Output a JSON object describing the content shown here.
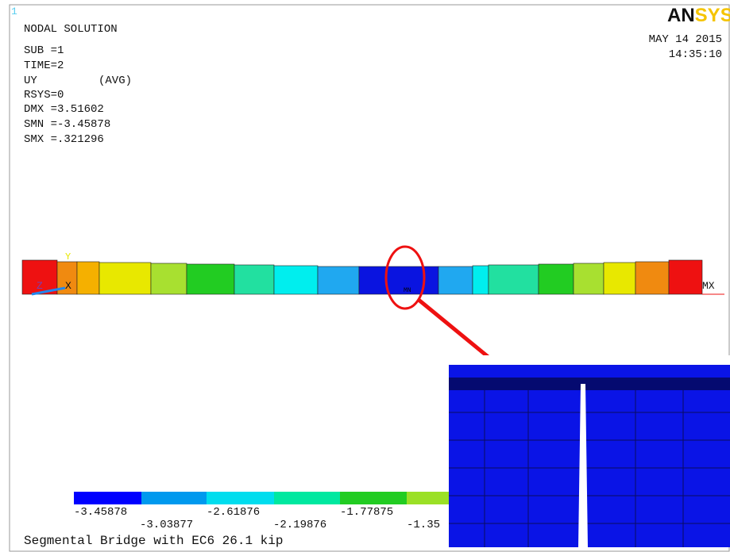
{
  "window_number": "1",
  "logo": {
    "an": "AN",
    "sys": "SYS"
  },
  "info": {
    "title": "NODAL SOLUTION",
    "sub": "SUB =1",
    "time": "TIME=2",
    "item": "UY",
    "avg": "(AVG)",
    "rsys": "RSYS=0",
    "dmx": "DMX =3.51602",
    "smn": "SMN =-3.45878",
    "smx": "SMX =.321296"
  },
  "date": "MAY 14 2015",
  "clock": "14:35:10",
  "triad": {
    "y": "Y",
    "z": "Z",
    "x": "X"
  },
  "markers": {
    "mx": "MX",
    "mn": "MN"
  },
  "legend": [
    "-3.45878",
    "-3.03877",
    "-2.61876",
    "-2.19876",
    "-1.77875",
    "-1.35"
  ],
  "caption": "Segmental Bridge with EC6 26.1 kip"
}
